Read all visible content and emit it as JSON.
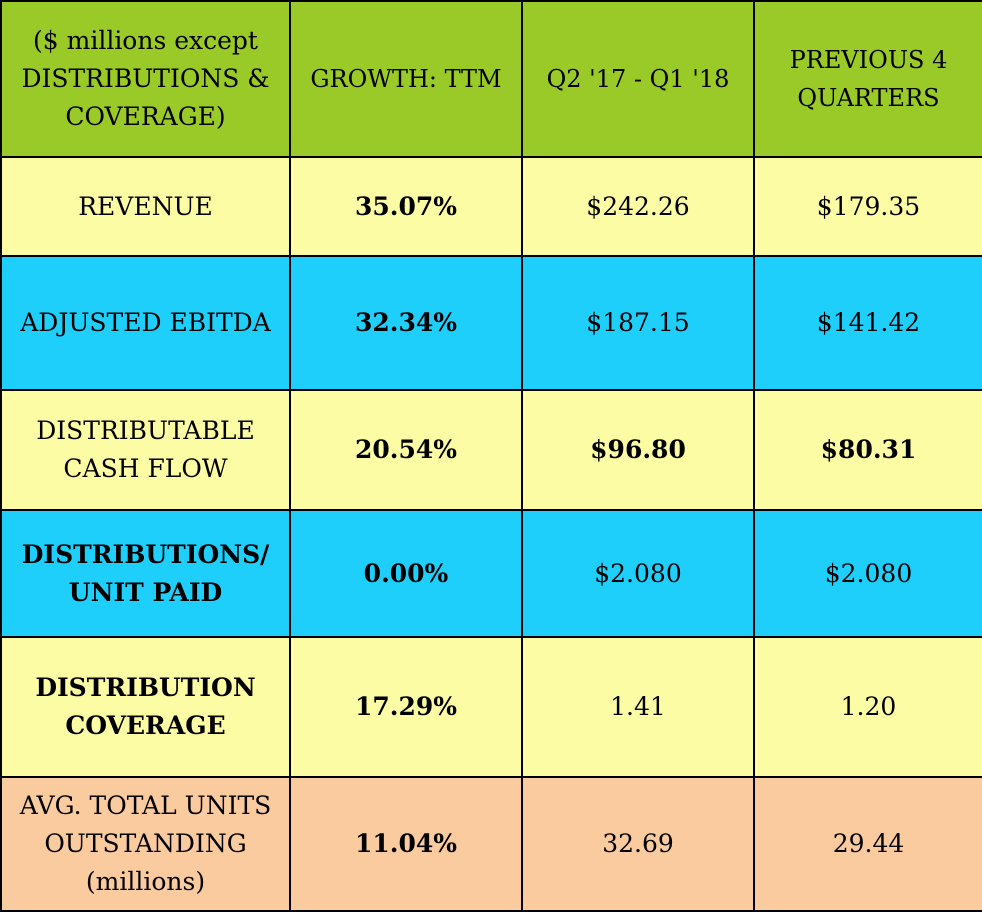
{
  "colors": {
    "header_green": "#9ACA27",
    "row_yellow": "#FCFCA4",
    "row_blue": "#1FCFFB",
    "row_peach": "#FBCBA0",
    "border": "#000000"
  },
  "chart_data": {
    "type": "table",
    "columns": [
      "($ millions except\nDISTRIBUTIONS &\nCOVERAGE)",
      "GROWTH: TTM",
      "Q2 '17 - Q1 '18",
      "PREVIOUS 4\nQUARTERS"
    ],
    "rows": [
      {
        "label": "REVENUE",
        "growth": "35.07%",
        "current": "$242.26",
        "previous": "$179.35",
        "color": "#FCFCA4",
        "label_bold": false,
        "values_bold": false
      },
      {
        "label": "ADJUSTED EBITDA",
        "growth": "32.34%",
        "current": "$187.15",
        "previous": "$141.42",
        "color": "#1FCFFB",
        "label_bold": false,
        "values_bold": false
      },
      {
        "label": "DISTRIBUTABLE\nCASH FLOW",
        "growth": "20.54%",
        "current": "$96.80",
        "previous": "$80.31",
        "color": "#FCFCA4",
        "label_bold": false,
        "values_bold": true
      },
      {
        "label": "DISTRIBUTIONS/\nUNIT PAID",
        "growth": "0.00%",
        "current": "$2.080",
        "previous": "$2.080",
        "color": "#1FCFFB",
        "label_bold": true,
        "values_bold": false
      },
      {
        "label": "DISTRIBUTION\nCOVERAGE",
        "growth": "17.29%",
        "current": "1.41",
        "previous": "1.20",
        "color": "#FCFCA4",
        "label_bold": true,
        "values_bold": false
      },
      {
        "label": "AVG.  TOTAL UNITS\nOUTSTANDING\n(millions)",
        "growth": "11.04%",
        "current": "32.69",
        "previous": "29.44",
        "color": "#FBCBA0",
        "label_bold": false,
        "values_bold": false
      }
    ]
  }
}
